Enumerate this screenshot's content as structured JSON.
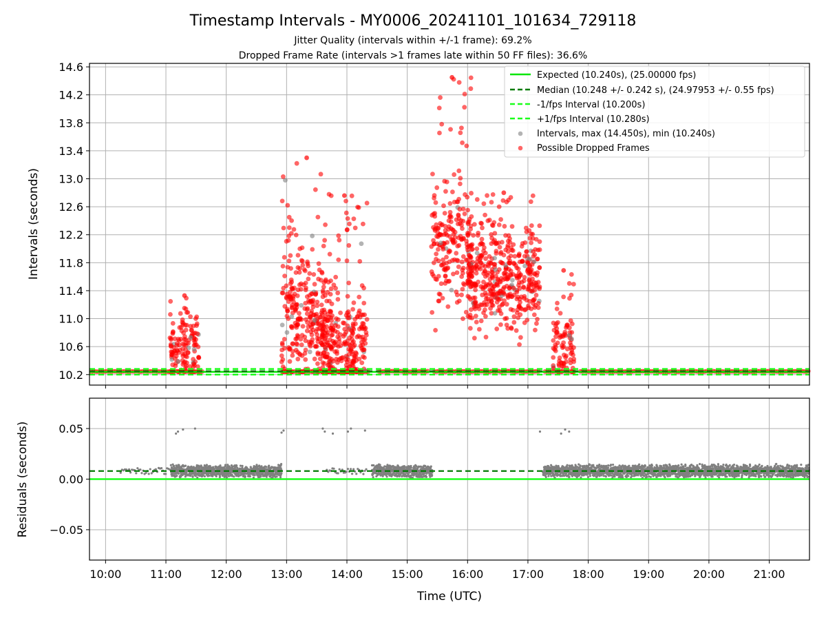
{
  "title": "Timestamp Intervals - MY0006_20241101_101634_729118",
  "subtitle_1": "Jitter Quality (intervals within +/-1 frame): 69.2%",
  "subtitle_2": "Dropped Frame Rate (intervals >1 frames late within 50 FF files): 36.6%",
  "colors": {
    "expected": "#00e600",
    "median": "#007a00",
    "interval_band": "#1aff1a",
    "intervals": "#808080",
    "dropped": "#ff0000",
    "grid": "#b0b0b0"
  },
  "chart_data": [
    {
      "id": "intervals",
      "type": "scatter",
      "ylabel": "Intervals (seconds)",
      "xlim": [
        "09:44",
        "21:40"
      ],
      "ylim": [
        10.05,
        14.65
      ],
      "yticks": [
        10.2,
        10.6,
        11.0,
        11.4,
        11.8,
        12.2,
        12.6,
        13.0,
        13.4,
        13.8,
        14.2,
        14.6
      ],
      "ytick_labels": [
        "10.2",
        "10.6",
        "11.0",
        "11.4",
        "11.8",
        "12.2",
        "12.6",
        "13.0",
        "13.4",
        "13.8",
        "14.2",
        "14.6"
      ],
      "grid": true,
      "legend_position": "top-right",
      "lines": [
        {
          "name": "Expected (10.240s), (25.00000 fps)",
          "y": 10.24,
          "style": "solid",
          "color": "#00e600"
        },
        {
          "name": "Median (10.248 +/- 0.242 s), (24.97953 +/- 0.55 fps)",
          "y": 10.248,
          "style": "dashed",
          "color": "#007a00"
        },
        {
          "name": "-1/fps Interval (10.200s)",
          "y": 10.2,
          "style": "dashed",
          "color": "#1aff1a"
        },
        {
          "name": "+1/fps Interval (10.280s)",
          "y": 10.28,
          "style": "dashed",
          "color": "#1aff1a"
        }
      ],
      "scatter_series": [
        {
          "name": "Intervals, max (14.450s), min (10.240s)",
          "color": "#808080",
          "max": 14.45,
          "min": 10.24
        },
        {
          "name": "Possible Dropped Frames",
          "color": "#ff0000"
        }
      ],
      "baseline_gaps": [
        [
          "11:37",
          "12:56"
        ],
        [
          "14:23",
          "14:30"
        ],
        [
          "15:22",
          "15:27"
        ],
        [
          "17:12",
          "17:17"
        ],
        [
          "17:47",
          "17:52"
        ]
      ],
      "clusters": [
        {
          "start": "11:04",
          "end": "11:33",
          "base": 10.55,
          "spread": 0.45,
          "peak": 11.33,
          "n": 140
        },
        {
          "start": "12:55",
          "end": "13:45",
          "base": 10.95,
          "spread": 0.9,
          "peak": 13.3,
          "n": 320
        },
        {
          "start": "13:35",
          "end": "14:20",
          "base": 10.6,
          "spread": 0.65,
          "peak": 12.76,
          "n": 280
        },
        {
          "start": "15:24",
          "end": "16:05",
          "base": 12.0,
          "spread": 0.9,
          "peak": 14.45,
          "n": 220
        },
        {
          "start": "16:00",
          "end": "17:12",
          "base": 11.55,
          "spread": 0.7,
          "peak": 12.8,
          "n": 480
        },
        {
          "start": "17:25",
          "end": "17:46",
          "base": 10.6,
          "spread": 0.5,
          "peak": 11.69,
          "n": 90
        }
      ]
    },
    {
      "id": "residuals",
      "type": "scatter",
      "xlabel": "Time (UTC)",
      "ylabel": "Residuals (seconds)",
      "xlim": [
        "09:44",
        "21:40"
      ],
      "ylim": [
        -0.08,
        0.08
      ],
      "yticks": [
        -0.05,
        0.0,
        0.05
      ],
      "ytick_labels": [
        "−0.05",
        "0.00",
        "0.05"
      ],
      "xticks": [
        "10:00",
        "11:00",
        "12:00",
        "13:00",
        "14:00",
        "15:00",
        "16:00",
        "17:00",
        "18:00",
        "19:00",
        "20:00",
        "21:00"
      ],
      "expected_residual": 0.0,
      "median_residual": 0.008,
      "grid": true,
      "dense_ranges": [
        [
          "11:05",
          "12:55"
        ],
        [
          "14:25",
          "15:25"
        ],
        [
          "17:15",
          "21:40"
        ]
      ],
      "sparse_ranges": [
        [
          "10:15",
          "11:05"
        ],
        [
          "13:40",
          "14:20"
        ]
      ],
      "outliers": [
        {
          "x": "11:10",
          "y": 0.045
        },
        {
          "x": "11:12",
          "y": 0.047
        },
        {
          "x": "11:17",
          "y": 0.049
        },
        {
          "x": "11:29",
          "y": 0.05
        },
        {
          "x": "12:55",
          "y": 0.046
        },
        {
          "x": "12:57",
          "y": 0.048
        },
        {
          "x": "13:36",
          "y": 0.05
        },
        {
          "x": "13:38",
          "y": 0.047
        },
        {
          "x": "13:46",
          "y": 0.045
        },
        {
          "x": "14:01",
          "y": 0.047
        },
        {
          "x": "14:04",
          "y": 0.05
        },
        {
          "x": "14:18",
          "y": 0.048
        },
        {
          "x": "17:12",
          "y": 0.047
        },
        {
          "x": "17:33",
          "y": 0.045
        },
        {
          "x": "17:37",
          "y": 0.049
        },
        {
          "x": "17:41",
          "y": 0.047
        }
      ]
    }
  ]
}
